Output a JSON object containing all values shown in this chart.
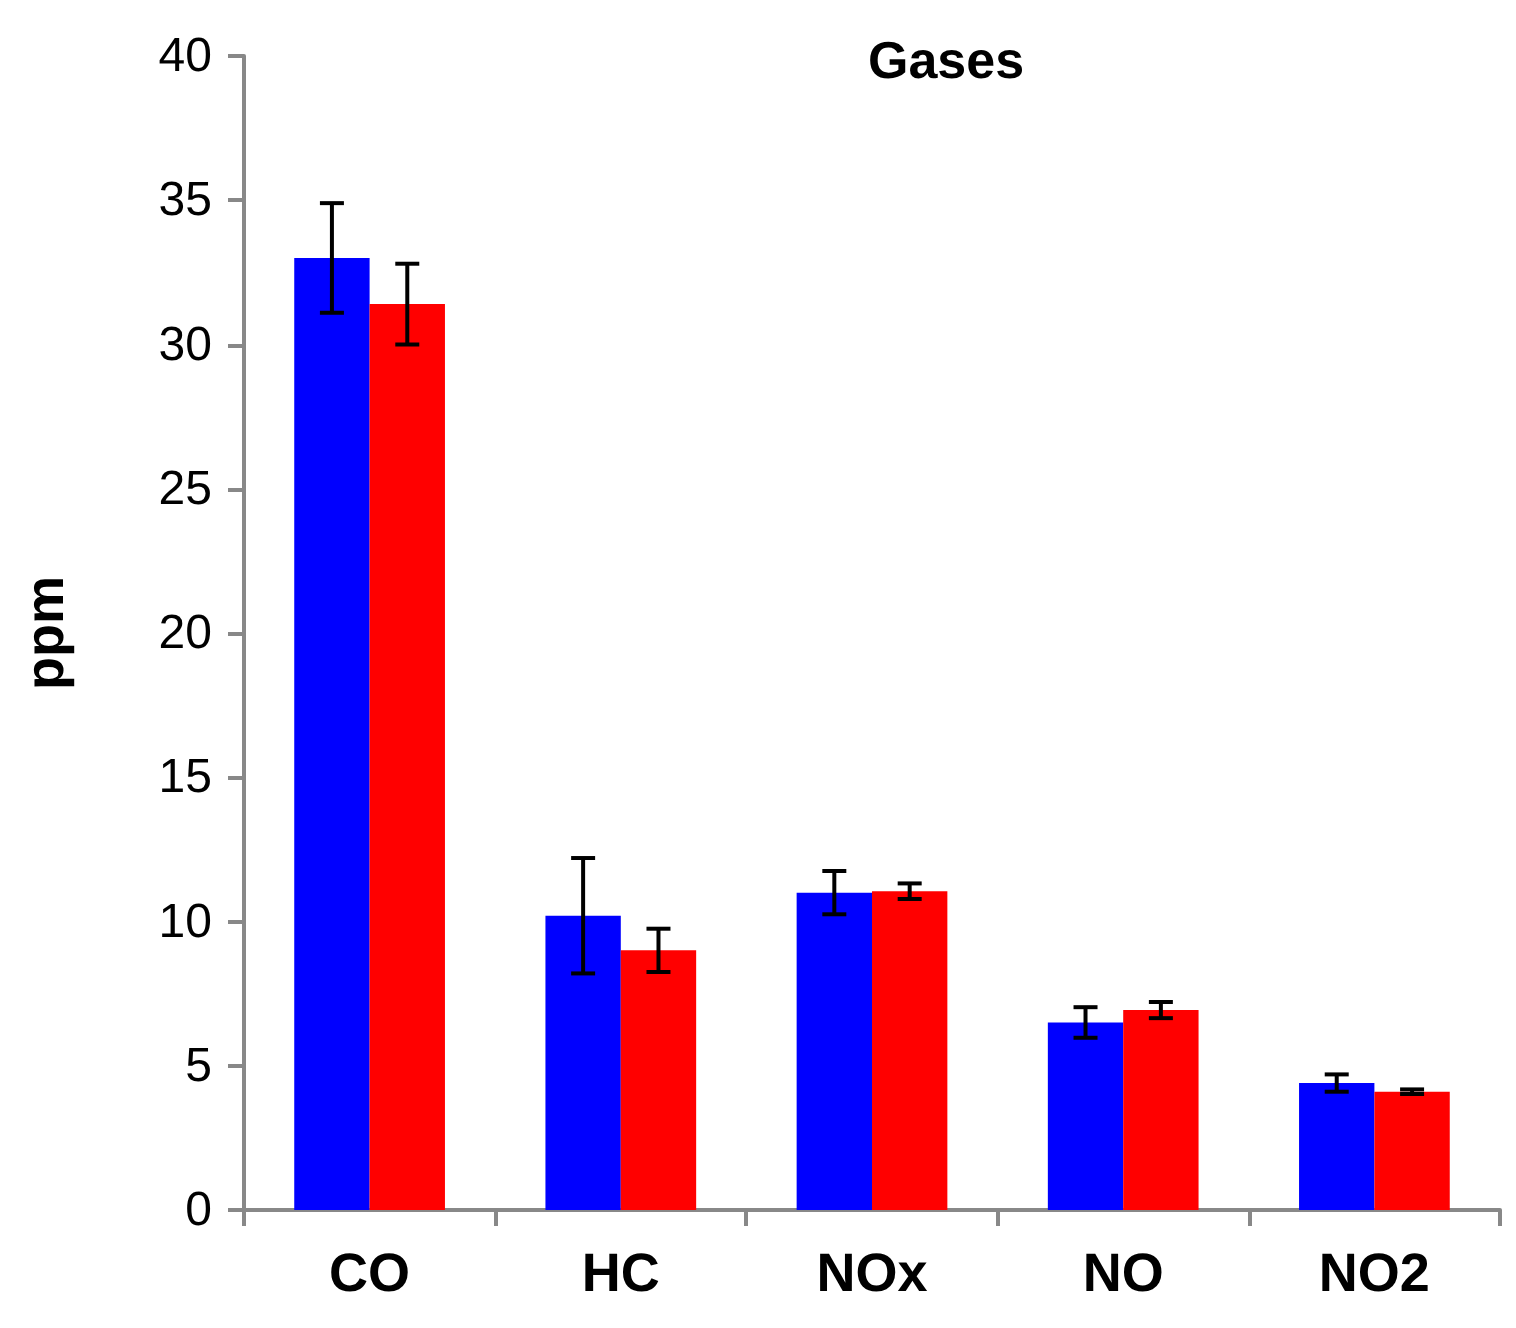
{
  "chart_data": {
    "type": "bar",
    "title": "Gases",
    "ylabel": "ppm",
    "categories": [
      "CO",
      "HC",
      "NOx",
      "NO",
      "NO2"
    ],
    "series": [
      {
        "color": "#0000ff",
        "values": [
          33.0,
          10.2,
          11.0,
          6.5,
          4.4
        ],
        "errors": [
          1.9,
          2.0,
          0.75,
          0.53,
          0.3
        ]
      },
      {
        "color": "#ff0000",
        "values": [
          31.4,
          9.0,
          11.05,
          6.93,
          4.1
        ],
        "errors": [
          1.4,
          0.75,
          0.27,
          0.28,
          0.08
        ]
      }
    ],
    "ylim": [
      0,
      40
    ],
    "yticks": [
      0,
      5,
      10,
      15,
      20,
      25,
      30,
      35,
      40
    ],
    "grid": false
  }
}
